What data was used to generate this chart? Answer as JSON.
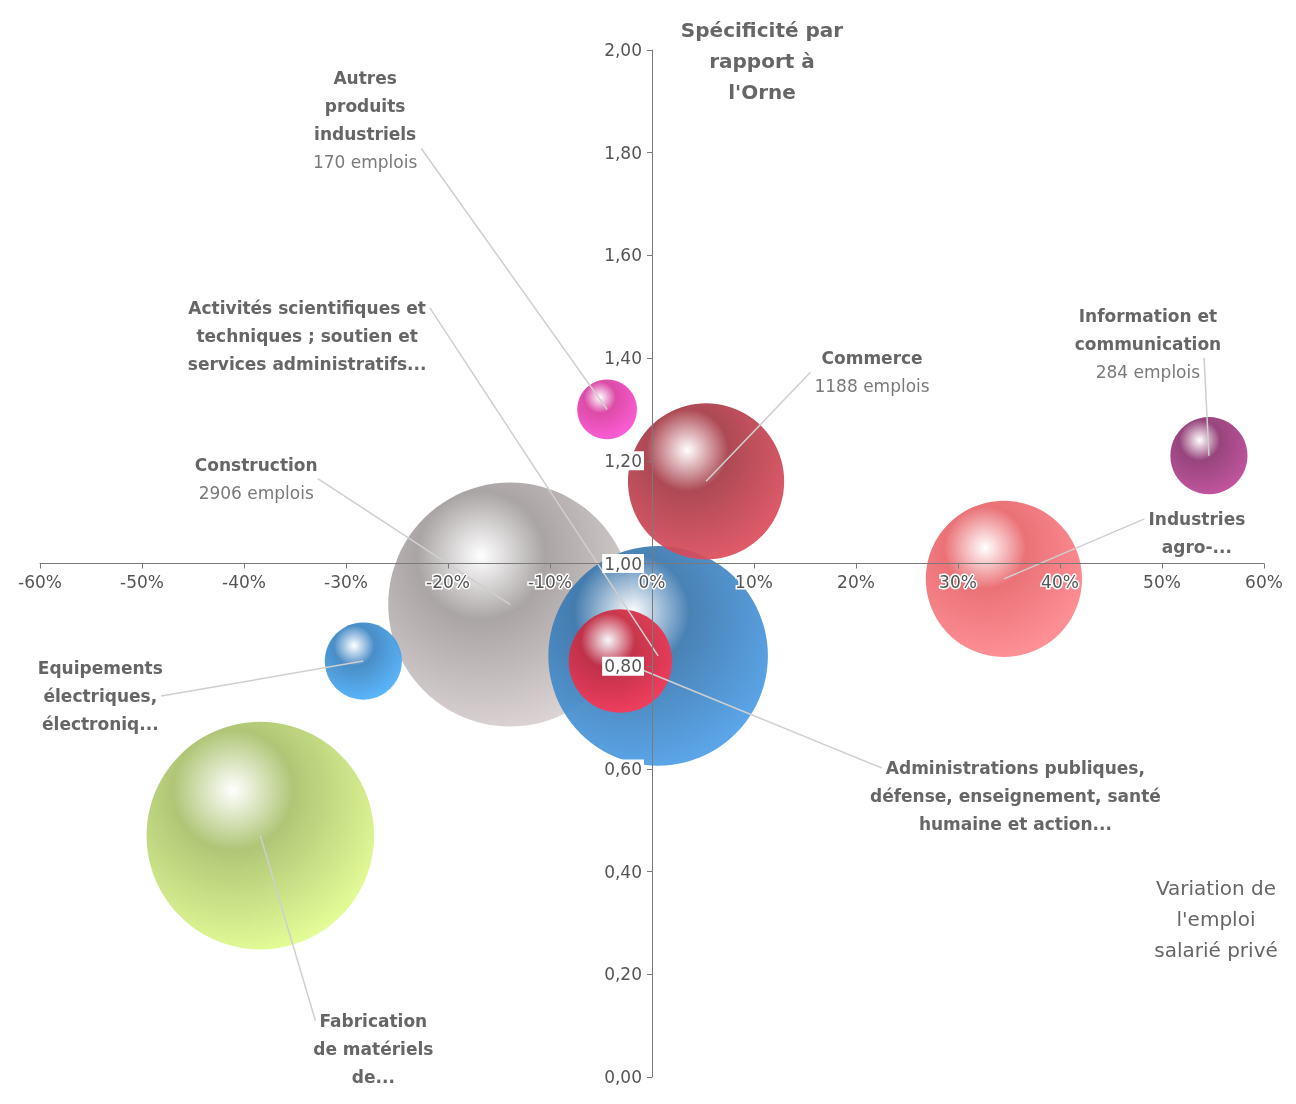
{
  "chart_data": {
    "type": "bubble",
    "xlabel": "Variation de l'emploi salarié privé",
    "ylabel": "Spécificité par rapport à l'Orne",
    "xlim": [
      -60,
      60
    ],
    "ylim": [
      0,
      2
    ],
    "xticks": [
      {
        "value": -60,
        "label": "-60%"
      },
      {
        "value": -50,
        "label": "-50%"
      },
      {
        "value": -40,
        "label": "-40%"
      },
      {
        "value": -30,
        "label": "-30%"
      },
      {
        "value": -20,
        "label": "-20%"
      },
      {
        "value": -10,
        "label": "-10%"
      },
      {
        "value": 0,
        "label": "0%"
      },
      {
        "value": 10,
        "label": "10%"
      },
      {
        "value": 20,
        "label": "20%"
      },
      {
        "value": 30,
        "label": "30%"
      },
      {
        "value": 40,
        "label": "40%"
      },
      {
        "value": 50,
        "label": "50%"
      },
      {
        "value": 60,
        "label": "60%"
      }
    ],
    "yticks": [
      {
        "value": 0,
        "label": "0,00"
      },
      {
        "value": 0.2,
        "label": "0,20"
      },
      {
        "value": 0.4,
        "label": "0,40"
      },
      {
        "value": 0.6,
        "label": "0,60"
      },
      {
        "value": 0.8,
        "label": "0,80"
      },
      {
        "value": 1,
        "label": "1,00"
      },
      {
        "value": 1.2,
        "label": "1,20"
      },
      {
        "value": 1.4,
        "label": "1,40"
      },
      {
        "value": 1.6,
        "label": "1,60"
      },
      {
        "value": 1.8,
        "label": "1,80"
      },
      {
        "value": 2,
        "label": "2,00"
      }
    ],
    "marker": "circle",
    "grid": false,
    "legend": false,
    "series": [
      {
        "name": "Construction",
        "color": "#a39d9d",
        "x": [
          -13.9
        ],
        "values": [
          0.92
        ],
        "sizes": [
          1
        ]
      },
      {
        "name": "Fabrication de matériels de...",
        "color": "#a9c16b",
        "x": [
          -38.4
        ],
        "values": [
          0.47
        ],
        "sizes": [
          0.87
        ]
      },
      {
        "name": "Activités scientifiques et techniques ; soutien et services administratifs...",
        "color": "#3a77ae",
        "x": [
          0.6
        ],
        "values": [
          0.82
        ],
        "sizes": [
          0.81
        ]
      },
      {
        "name": "Commerce",
        "color": "#a63a46",
        "x": [
          5.3
        ],
        "values": [
          1.16
        ],
        "sizes": [
          0.41
        ]
      },
      {
        "name": "Industries agro-...",
        "color": "#e8666b",
        "x": [
          34.5
        ],
        "values": [
          0.97
        ],
        "sizes": [
          0.41
        ]
      },
      {
        "name": "Administrations publiques, défense, enseignement, santé humaine et action...",
        "color": "#c92a40",
        "x": [
          -3.1
        ],
        "values": [
          0.81
        ],
        "sizes": [
          0.18
        ]
      },
      {
        "name": "Equipements électriques, électroniq...",
        "color": "#3a84c2",
        "x": [
          -28.3
        ],
        "values": [
          0.81
        ],
        "sizes": [
          0.1
        ]
      },
      {
        "name": "Information et communication",
        "color": "#8e3571",
        "x": [
          54.6
        ],
        "values": [
          1.21
        ],
        "sizes": [
          0.1
        ]
      },
      {
        "name": "Autres produits industriels",
        "color": "#d93c9f",
        "x": [
          -4.4
        ],
        "values": [
          1.3
        ],
        "sizes": [
          0.06
        ]
      }
    ],
    "annotations": [
      {
        "text": "2906 emplois",
        "x": -13.9,
        "y": 0.92
      },
      {
        "text": "1188 emplois",
        "x": 5.3,
        "y": 1.16
      },
      {
        "text": "284 emplois",
        "x": 54.6,
        "y": 1.21
      },
      {
        "text": "170 emplois",
        "x": -4.4,
        "y": 1.3
      }
    ]
  }
}
